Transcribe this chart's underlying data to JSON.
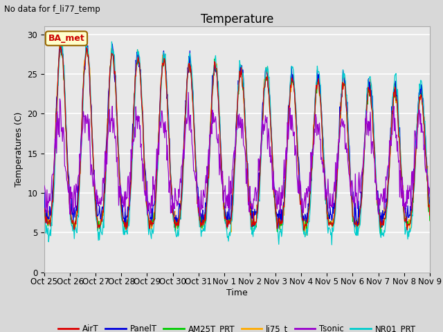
{
  "title": "Temperature",
  "xlabel": "Time",
  "ylabel": "Temperatures (C)",
  "note": "No data for f_li77_temp",
  "ylim": [
    0,
    31
  ],
  "xlim": [
    0,
    360
  ],
  "yticks": [
    0,
    5,
    10,
    15,
    20,
    25,
    30
  ],
  "fig_bg": "#d8d8d8",
  "plot_bg": "#e8e8e8",
  "grid_color": "#ffffff",
  "legend_box_label": "BA_met",
  "legend_box_edge_color": "#996600",
  "legend_box_text_color": "#cc0000",
  "legend_box_fill": "#ffffcc",
  "series": [
    {
      "label": "AirT",
      "color": "#dd0000"
    },
    {
      "label": "PanelT",
      "color": "#0000dd"
    },
    {
      "label": "AM25T_PRT",
      "color": "#00cc00"
    },
    {
      "label": "li75_t",
      "color": "#ffaa00"
    },
    {
      "label": "Tsonic",
      "color": "#9900cc"
    },
    {
      "label": "NR01_PRT",
      "color": "#00cccc"
    }
  ],
  "x_tick_labels": [
    "Oct 25",
    "Oct 26",
    "Oct 27",
    "Oct 28",
    "Oct 29",
    "Oct 30",
    "Oct 31",
    "Nov 1",
    "Nov 2",
    "Nov 3",
    "Nov 4",
    "Nov 5",
    "Nov 6",
    "Nov 7",
    "Nov 8",
    "Nov 9"
  ],
  "x_tick_positions": [
    0,
    24,
    48,
    72,
    96,
    120,
    144,
    168,
    192,
    216,
    240,
    264,
    288,
    312,
    336,
    360
  ]
}
